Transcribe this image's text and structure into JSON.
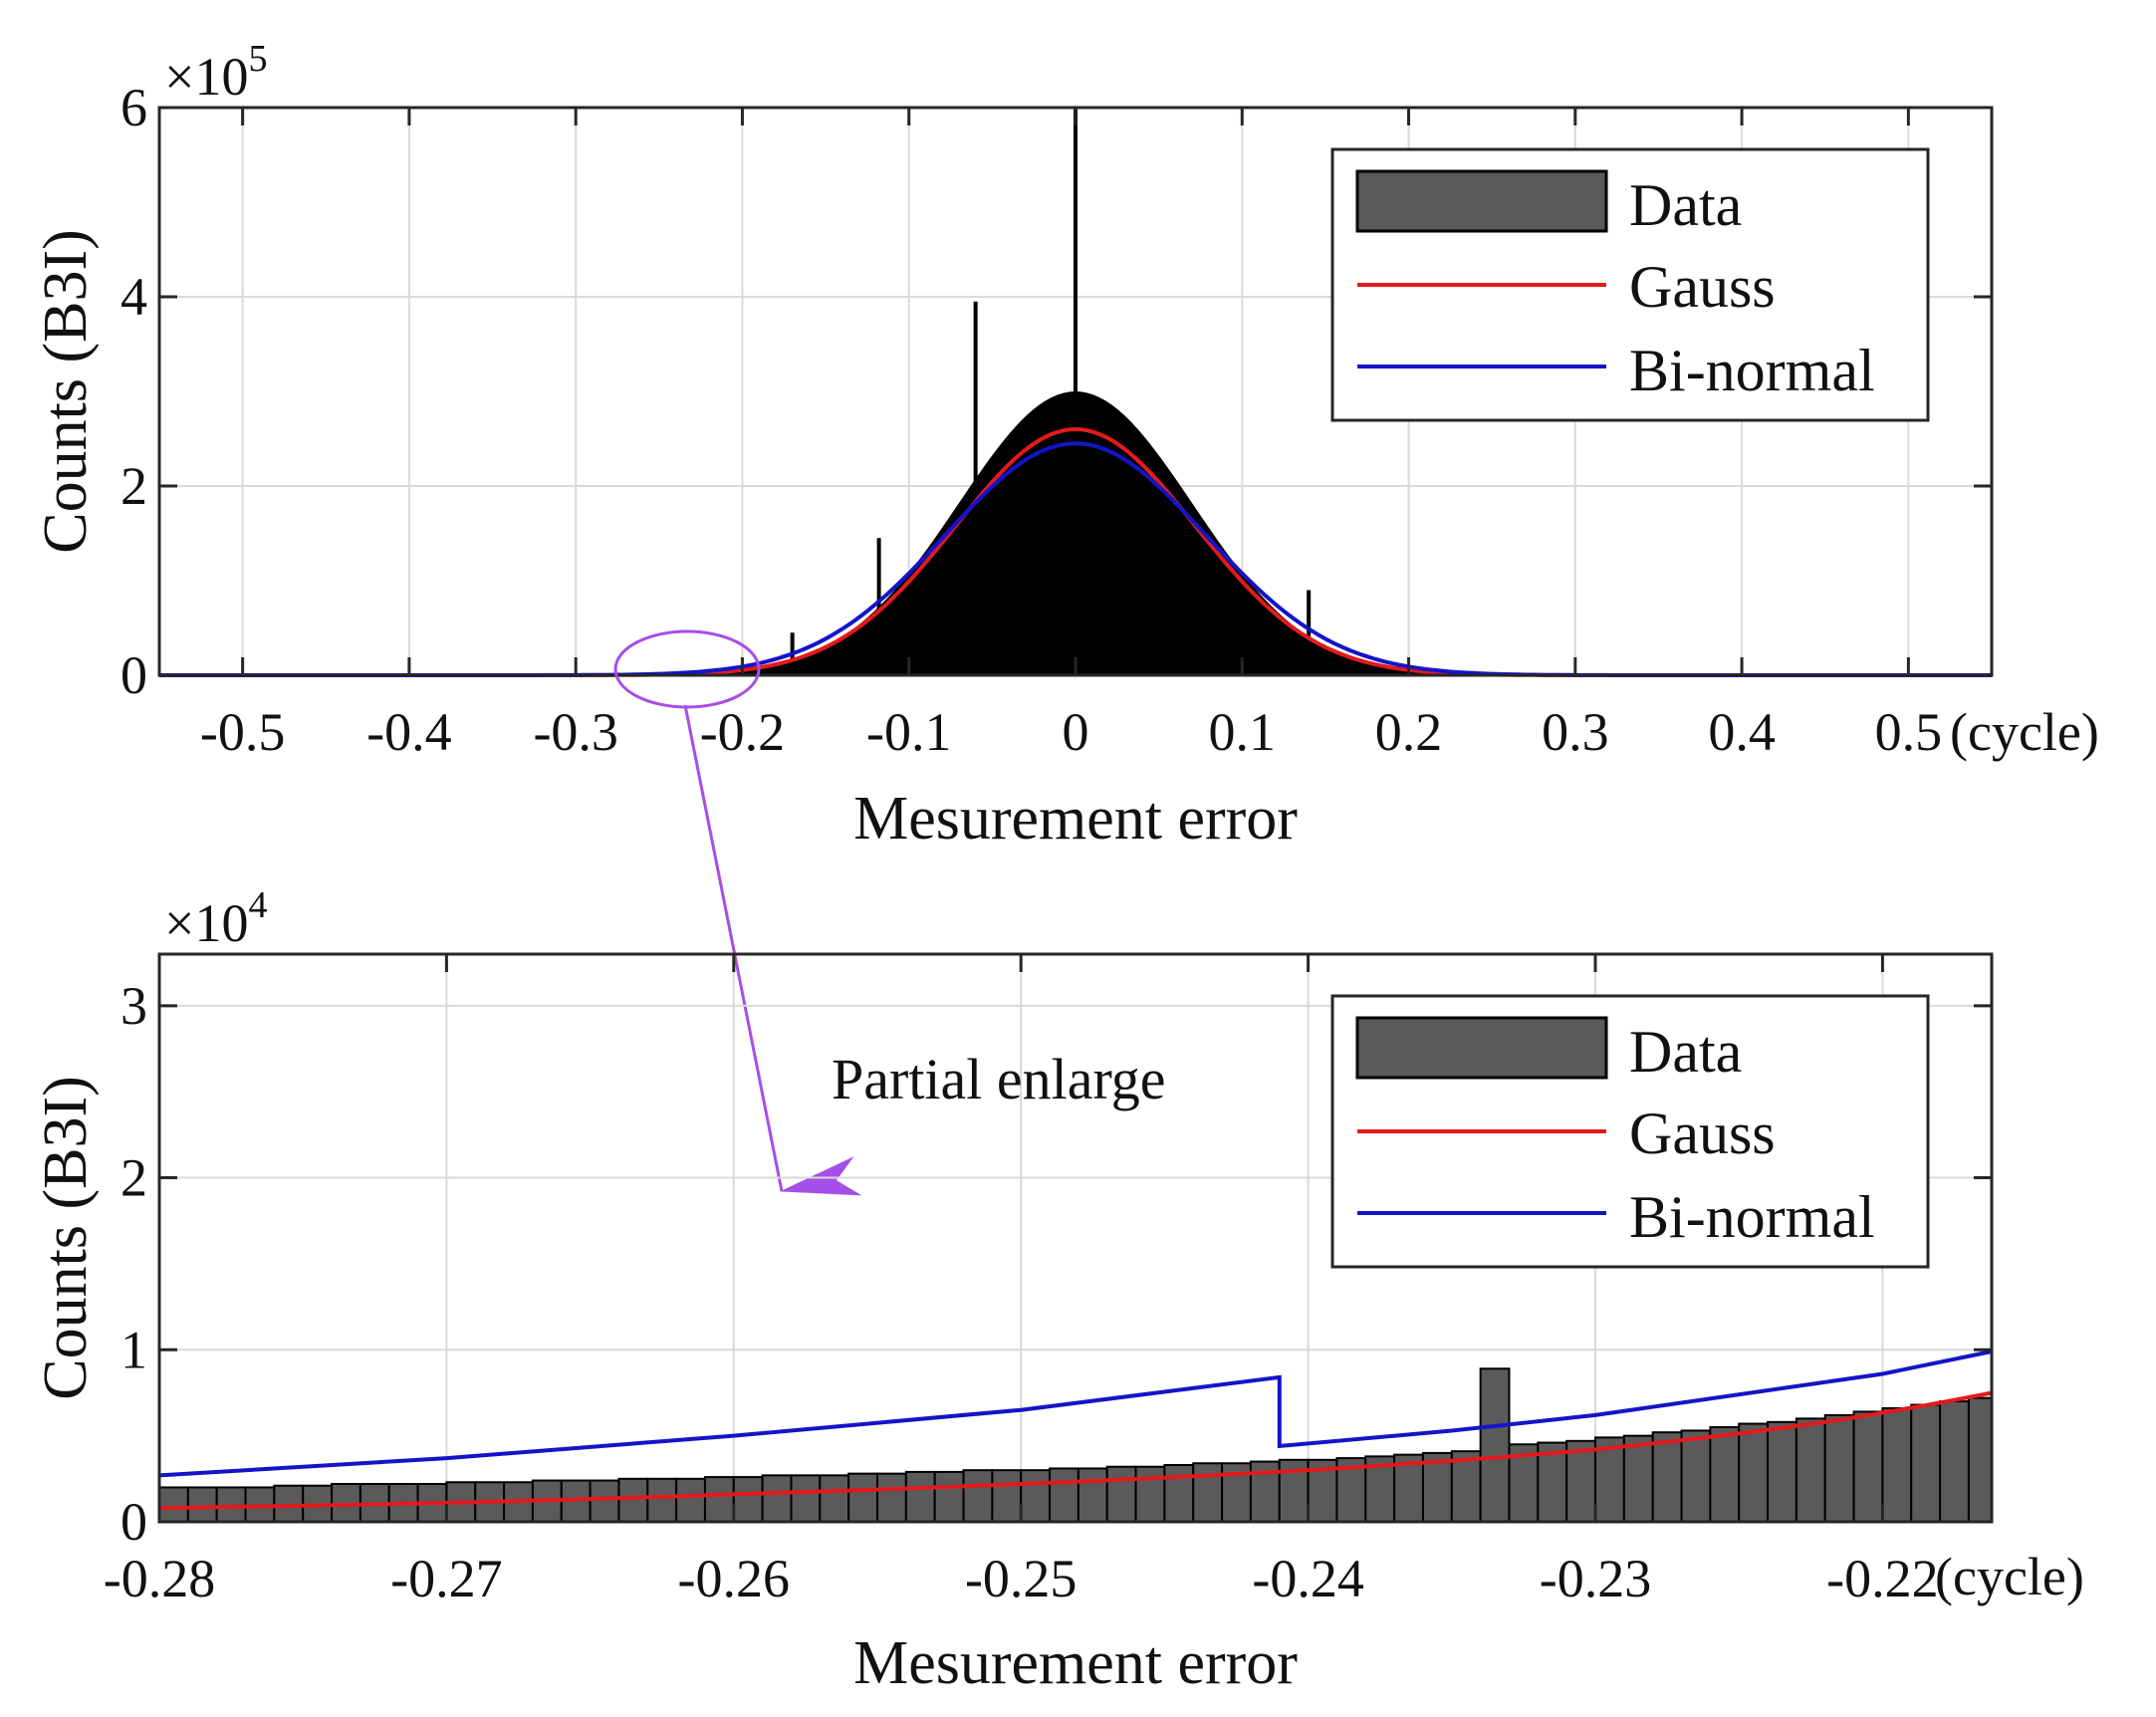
{
  "colors": {
    "data_fill_top": "#000000",
    "data_fill_bottom": "#5a5a5a",
    "gauss": "#e31a1c",
    "binormal": "#1414c8",
    "annotation": "#a64ee8",
    "grid": "#d9d9d9"
  },
  "annotation": {
    "text": "Partial enlarge"
  },
  "chart_data": [
    {
      "type": "bar",
      "panel": "top",
      "title": "",
      "xlabel": "Mesurement error",
      "ylabel": "Counts (B3I)",
      "x_unit": "(cycle)",
      "y_multiplier": {
        "base": "×10",
        "exp": "5"
      },
      "xlim": [
        -0.55,
        0.55
      ],
      "ylim": [
        0,
        6
      ],
      "xticks": [
        -0.5,
        -0.4,
        -0.3,
        -0.2,
        -0.1,
        0,
        0.1,
        0.2,
        0.3,
        0.4,
        0.5
      ],
      "xtick_labels": [
        "-0.5",
        "-0.4",
        "-0.3",
        "-0.2",
        "-0.1",
        "0",
        "0.1",
        "0.2",
        "0.3",
        "0.4",
        "0.5"
      ],
      "yticks": [
        0,
        2,
        4,
        6
      ],
      "ytick_labels": [
        "0",
        "2",
        "4",
        "6"
      ],
      "grid": true,
      "legend": {
        "position": "top-right",
        "entries": [
          "Data",
          "Gauss",
          "Bi-normal"
        ]
      },
      "histogram": {
        "peak": 3.0,
        "sigma": 0.07,
        "center": 0.0
      },
      "spikes": [
        {
          "x": 0.0,
          "y": 6.0
        },
        {
          "x": -0.06,
          "y": 3.95
        },
        {
          "x": -0.118,
          "y": 1.45
        },
        {
          "x": 0.14,
          "y": 0.9
        },
        {
          "x": -0.17,
          "y": 0.45
        }
      ],
      "series": [
        {
          "name": "Gauss",
          "model": "gaussian",
          "peak": 2.6,
          "center": 0.0,
          "sigma": 0.072
        },
        {
          "name": "Bi-normal",
          "model": "gaussian",
          "peak": 2.45,
          "center": 0.0,
          "sigma": 0.078
        }
      ]
    },
    {
      "type": "bar",
      "panel": "bottom",
      "title": "",
      "xlabel": "Mesurement error",
      "ylabel": "Counts (B3I)",
      "x_unit": "(cycle)",
      "y_multiplier": {
        "base": "×10",
        "exp": "4"
      },
      "xlim": [
        -0.28,
        -0.2162
      ],
      "ylim": [
        0,
        3.3
      ],
      "xticks": [
        -0.28,
        -0.27,
        -0.26,
        -0.25,
        -0.24,
        -0.23,
        -0.22
      ],
      "xtick_labels": [
        "-0.28",
        "-0.27",
        "-0.26",
        "-0.25",
        "-0.24",
        "-0.23",
        "-0.22"
      ],
      "yticks": [
        0,
        1,
        2,
        3
      ],
      "ytick_labels": [
        "0",
        "1",
        "2",
        "3"
      ],
      "grid": true,
      "legend": {
        "position": "top-right",
        "entries": [
          "Data",
          "Gauss",
          "Bi-normal"
        ]
      },
      "bins": {
        "start": -0.28,
        "width": 0.001,
        "values": [
          0.2,
          0.2,
          0.2,
          0.2,
          0.21,
          0.21,
          0.22,
          0.22,
          0.22,
          0.22,
          0.23,
          0.23,
          0.23,
          0.24,
          0.24,
          0.24,
          0.25,
          0.25,
          0.25,
          0.26,
          0.26,
          0.27,
          0.27,
          0.27,
          0.28,
          0.28,
          0.29,
          0.29,
          0.3,
          0.3,
          0.3,
          0.31,
          0.31,
          0.32,
          0.32,
          0.33,
          0.34,
          0.34,
          0.35,
          0.36,
          0.36,
          0.37,
          0.38,
          0.39,
          0.4,
          0.41,
          0.89,
          0.45,
          0.46,
          0.47,
          0.49,
          0.5,
          0.52,
          0.53,
          0.55,
          0.57,
          0.58,
          0.6,
          0.62,
          0.64,
          0.66,
          0.68,
          0.7,
          0.72
        ]
      },
      "series": [
        {
          "name": "Gauss",
          "x": [
            -0.28,
            -0.27,
            -0.26,
            -0.25,
            -0.24,
            -0.23,
            -0.222,
            -0.2162
          ],
          "values": [
            0.08,
            0.11,
            0.16,
            0.22,
            0.3,
            0.42,
            0.58,
            0.75
          ]
        },
        {
          "name": "Bi-normal",
          "x": [
            -0.28,
            -0.27,
            -0.26,
            -0.25,
            -0.241,
            -0.241,
            -0.235,
            -0.23,
            -0.22,
            -0.2162
          ],
          "values": [
            0.27,
            0.37,
            0.5,
            0.65,
            0.84,
            0.44,
            0.53,
            0.62,
            0.86,
            0.99
          ]
        }
      ]
    }
  ]
}
